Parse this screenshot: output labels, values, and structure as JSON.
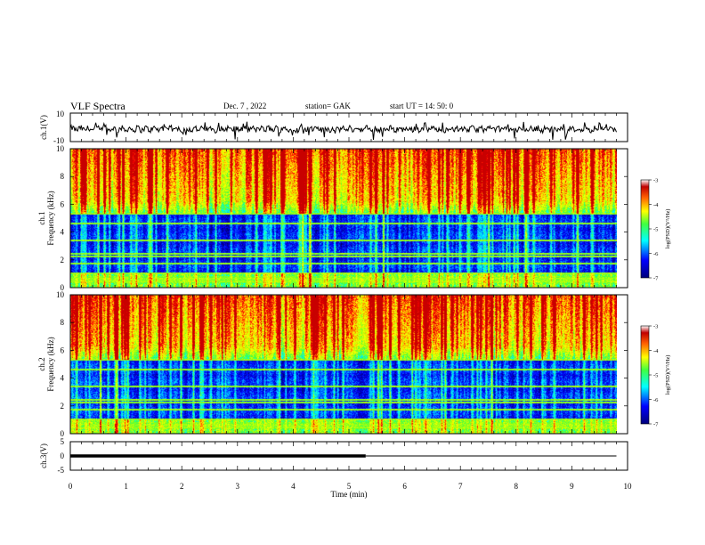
{
  "header": {
    "title": "VLF Spectra",
    "date": "Dec. 7 , 2022",
    "station": "station= GAK",
    "start": "start  UT =   14: 50: 0"
  },
  "colors": {
    "waveform": "#000000",
    "background": "#ffffff",
    "colormap": [
      "#000000",
      "#00007a",
      "#0000ff",
      "#00b4ff",
      "#00ffff",
      "#40ff40",
      "#c8ff00",
      "#ffff00",
      "#ff8000",
      "#ff0000",
      "#c00000",
      "#ffffff"
    ]
  },
  "chart_data": [
    {
      "type": "line",
      "name": "ch1-waveform",
      "ylabel": "ch.1(V)",
      "ylim": [
        -10,
        10
      ],
      "yticks": [
        "10",
        "-10"
      ],
      "xlim": [
        0,
        10
      ],
      "description_series": "noisy waveform around y=-1 spanning t=0 to 9.8 min"
    },
    {
      "type": "heatmap",
      "name": "ch1-spectrogram",
      "ylabel": "ch.1\nFrequency (kHz)",
      "ylim": [
        0,
        10
      ],
      "yticks": [
        "0",
        "2",
        "4",
        "6",
        "8",
        "10"
      ],
      "xlim": [
        0,
        10
      ],
      "data_xmax": 9.8,
      "colorbar": {
        "label": "log(PSD)(V²/Hz)",
        "range": [
          -7,
          -3
        ],
        "ticks": [
          "-3",
          "-4",
          "-5",
          "-6",
          "-7"
        ]
      }
    },
    {
      "type": "heatmap",
      "name": "ch2-spectrogram",
      "ylabel": "ch.2\nFrequency (kHz)",
      "ylim": [
        0,
        10
      ],
      "yticks": [
        "0",
        "2",
        "4",
        "6",
        "8",
        "10"
      ],
      "xlim": [
        0,
        10
      ],
      "data_xmax": 9.8,
      "colorbar": {
        "label": "log(PSD)(V²/Hz)",
        "range": [
          -7,
          -3
        ],
        "ticks": [
          "-3",
          "-4",
          "-5",
          "-6",
          "-7"
        ]
      }
    },
    {
      "type": "line",
      "name": "ch3-waveform",
      "ylabel": "ch.3(V)",
      "ylim": [
        -5,
        5
      ],
      "yticks": [
        "5",
        "0",
        "-5"
      ],
      "xlim": [
        0,
        10
      ],
      "series": [
        {
          "x": [
            0,
            5.3
          ],
          "y": [
            0,
            0
          ],
          "thick": true
        },
        {
          "x": [
            5.3,
            9.8
          ],
          "y": [
            0,
            0
          ],
          "thick": false
        }
      ]
    }
  ],
  "xaxis": {
    "label": "Time (min)",
    "ticks": [
      "0",
      "1",
      "2",
      "3",
      "4",
      "5",
      "6",
      "7",
      "8",
      "9",
      "10"
    ]
  }
}
